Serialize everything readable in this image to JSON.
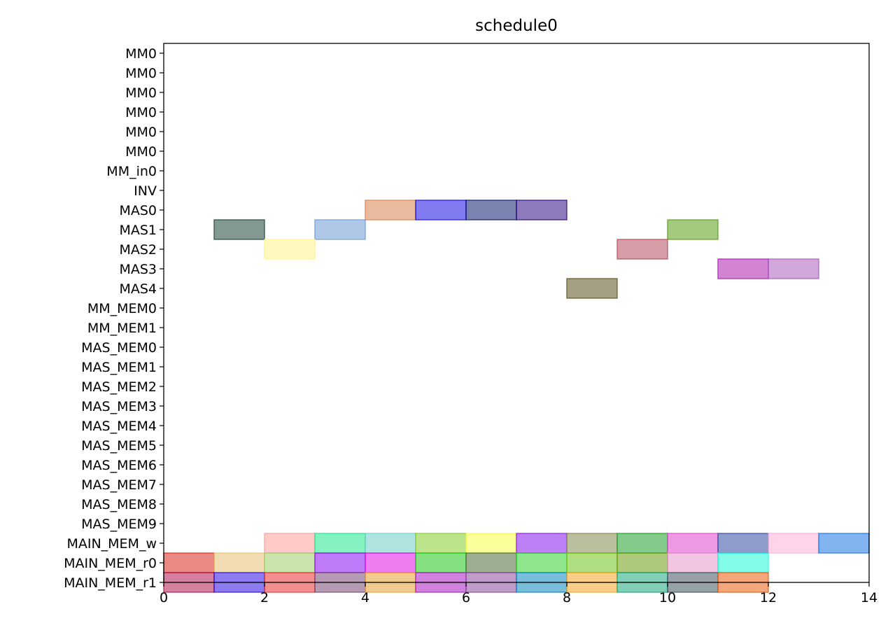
{
  "chart_data": {
    "type": "gantt",
    "title": "schedule0",
    "xlabel": "",
    "ylabel": "",
    "xlim": [
      0,
      14
    ],
    "xticks": [
      0,
      2,
      4,
      6,
      8,
      10,
      12,
      14
    ],
    "grid": false,
    "legend": "none",
    "rows": [
      "MM0",
      "MM0",
      "MM0",
      "MM0",
      "MM0",
      "MM0",
      "MM_in0",
      "INV",
      "MAS0",
      "MAS1",
      "MAS2",
      "MAS3",
      "MAS4",
      "MM_MEM0",
      "MM_MEM1",
      "MAS_MEM0",
      "MAS_MEM1",
      "MAS_MEM2",
      "MAS_MEM3",
      "MAS_MEM4",
      "MAS_MEM5",
      "MAS_MEM6",
      "MAS_MEM7",
      "MAS_MEM8",
      "MAS_MEM9",
      "MAIN_MEM_w",
      "MAIN_MEM_r0",
      "MAIN_MEM_r1"
    ],
    "tasks": [
      {
        "row": 8,
        "start": 4,
        "end": 5,
        "color": "#d9824f"
      },
      {
        "row": 8,
        "start": 5,
        "end": 6,
        "color": "#1a0ee6"
      },
      {
        "row": 8,
        "start": 6,
        "end": 7,
        "color": "#0c1b6e"
      },
      {
        "row": 8,
        "start": 7,
        "end": 8,
        "color": "#2d0c82"
      },
      {
        "row": 9,
        "start": 1,
        "end": 2,
        "color": "#1f4637"
      },
      {
        "row": 9,
        "start": 3,
        "end": 4,
        "color": "#6e9bd3"
      },
      {
        "row": 9,
        "start": 10,
        "end": 11,
        "color": "#5a9e16"
      },
      {
        "row": 10,
        "start": 2,
        "end": 3,
        "color": "#fff28a"
      },
      {
        "row": 10,
        "start": 9,
        "end": 10,
        "color": "#b74c5f"
      },
      {
        "row": 11,
        "start": 11,
        "end": 12,
        "color": "#ad1fae"
      },
      {
        "row": 11,
        "start": 12,
        "end": 13,
        "color": "#aa5cbd"
      },
      {
        "row": 12,
        "start": 8,
        "end": 9,
        "color": "#5b521f"
      },
      {
        "row": 25,
        "start": 2,
        "end": 3,
        "color": "#ff9e9a"
      },
      {
        "row": 25,
        "start": 3,
        "end": 4,
        "color": "#20e58c"
      },
      {
        "row": 25,
        "start": 4,
        "end": 5,
        "color": "#6dcdc9"
      },
      {
        "row": 25,
        "start": 5,
        "end": 6,
        "color": "#86ce2c"
      },
      {
        "row": 25,
        "start": 6,
        "end": 7,
        "color": "#f7ff46"
      },
      {
        "row": 25,
        "start": 7,
        "end": 8,
        "color": "#8718ed"
      },
      {
        "row": 25,
        "start": 8,
        "end": 9,
        "color": "#858a4f"
      },
      {
        "row": 25,
        "start": 9,
        "end": 10,
        "color": "#1f9f2a"
      },
      {
        "row": 25,
        "start": 10,
        "end": 11,
        "color": "#e046ce"
      },
      {
        "row": 25,
        "start": 11,
        "end": 12,
        "color": "#2f4aa0"
      },
      {
        "row": 25,
        "start": 12,
        "end": 13,
        "color": "#ffb0d8"
      },
      {
        "row": 25,
        "start": 13,
        "end": 14,
        "color": "#1976e6"
      },
      {
        "row": 26,
        "start": 0,
        "end": 1,
        "color": "#d9261c"
      },
      {
        "row": 26,
        "start": 1,
        "end": 2,
        "color": "#e6c071"
      },
      {
        "row": 26,
        "start": 2,
        "end": 3,
        "color": "#9ccf66"
      },
      {
        "row": 26,
        "start": 3,
        "end": 4,
        "color": "#8a0ef5"
      },
      {
        "row": 26,
        "start": 4,
        "end": 5,
        "color": "#df12e6"
      },
      {
        "row": 26,
        "start": 5,
        "end": 6,
        "color": "#1fc71a"
      },
      {
        "row": 26,
        "start": 6,
        "end": 7,
        "color": "#4a6d3a"
      },
      {
        "row": 26,
        "start": 7,
        "end": 8,
        "color": "#2fd12c"
      },
      {
        "row": 26,
        "start": 8,
        "end": 9,
        "color": "#6ec21a"
      },
      {
        "row": 26,
        "start": 9,
        "end": 10,
        "color": "#6a9c12"
      },
      {
        "row": 26,
        "start": 10,
        "end": 11,
        "color": "#e696c8"
      },
      {
        "row": 26,
        "start": 11,
        "end": 12,
        "color": "#1dfcd8"
      },
      {
        "row": 27,
        "start": 0,
        "end": 1,
        "color": "#b0184f"
      },
      {
        "row": 27,
        "start": 1,
        "end": 2,
        "color": "#2f10e6"
      },
      {
        "row": 27,
        "start": 2,
        "end": 3,
        "color": "#e8322f"
      },
      {
        "row": 27,
        "start": 3,
        "end": 4,
        "color": "#7a4876"
      },
      {
        "row": 27,
        "start": 4,
        "end": 5,
        "color": "#e6a032"
      },
      {
        "row": 27,
        "start": 5,
        "end": 6,
        "color": "#a81ec2"
      },
      {
        "row": 27,
        "start": 6,
        "end": 7,
        "color": "#8a4a9e"
      },
      {
        "row": 27,
        "start": 7,
        "end": 8,
        "color": "#0a86bc"
      },
      {
        "row": 27,
        "start": 8,
        "end": 9,
        "color": "#f5a623"
      },
      {
        "row": 27,
        "start": 9,
        "end": 10,
        "color": "#18a77a"
      },
      {
        "row": 27,
        "start": 10,
        "end": 11,
        "color": "#405560"
      },
      {
        "row": 27,
        "start": 11,
        "end": 12,
        "color": "#ec5b0c"
      }
    ]
  }
}
